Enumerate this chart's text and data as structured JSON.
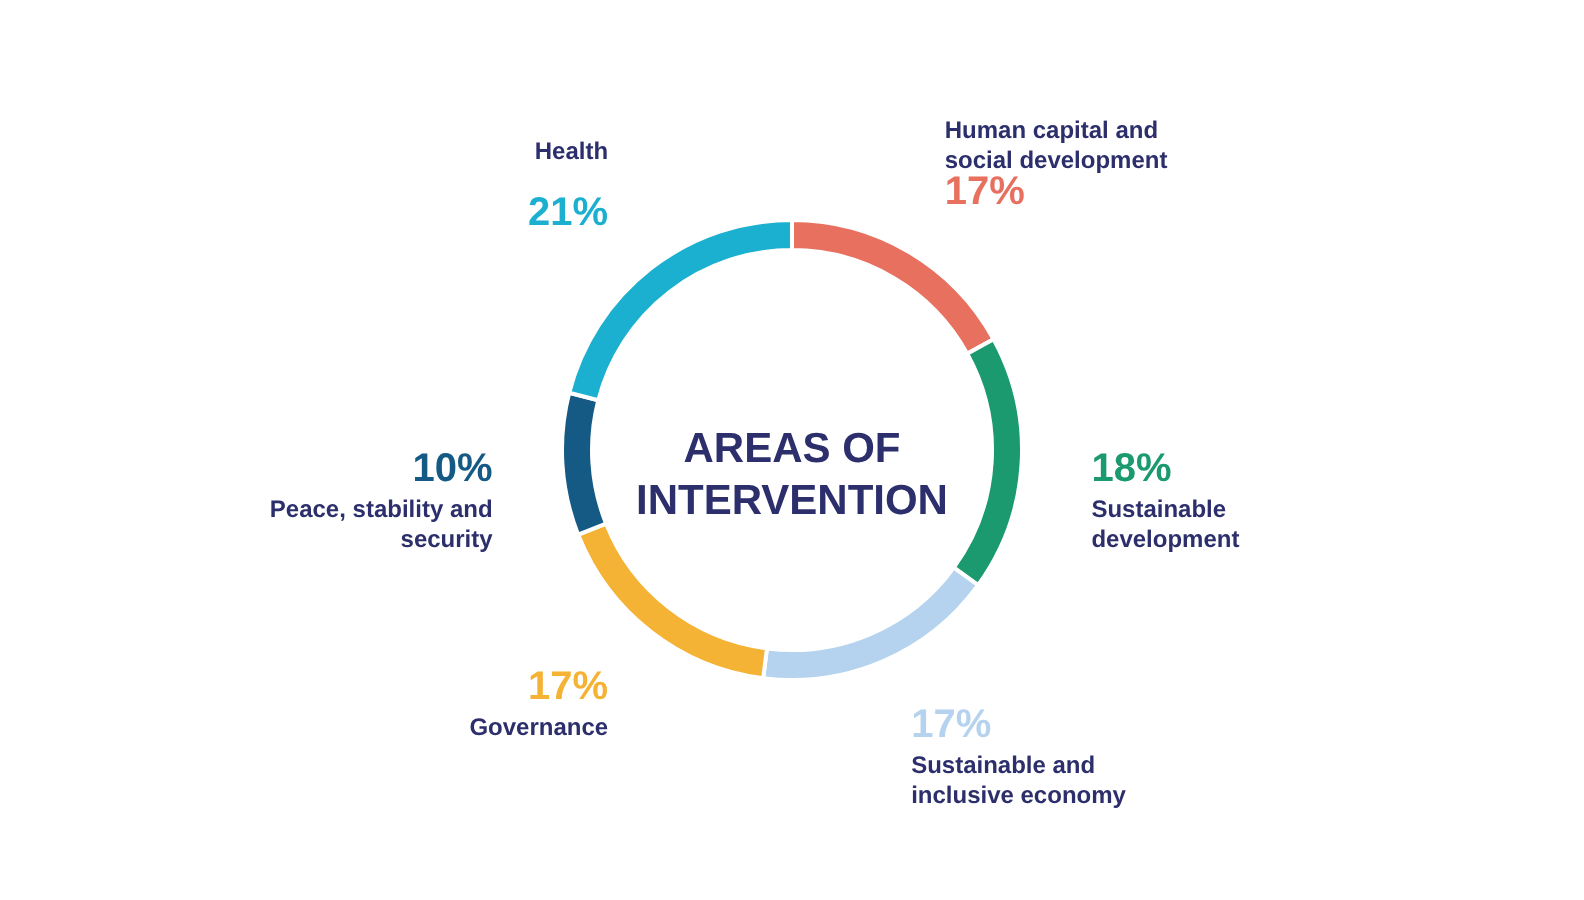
{
  "chart_data": {
    "type": "donut",
    "title": "AREAS OF INTERVENTION",
    "categories": [
      "Human capital and social development",
      "Sustainable development",
      "Sustainable and inclusive economy",
      "Governance",
      "Peace, stability and security",
      "Health"
    ],
    "values": [
      17,
      18,
      17,
      17,
      10,
      21
    ],
    "value_labels": [
      "17%",
      "18%",
      "17%",
      "17%",
      "10%",
      "21%"
    ],
    "colors": [
      "#e8705f",
      "#1a9a6e",
      "#b5d3ee",
      "#f5b335",
      "#155a85",
      "#1bb0cf"
    ]
  }
}
